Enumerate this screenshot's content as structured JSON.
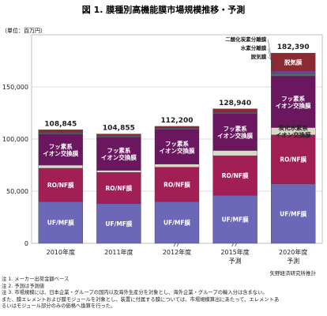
{
  "chart_data": {
    "type": "bar",
    "stacked": true,
    "title": "図 1.  膜種別高機能膜市場規模推移・予測",
    "ylabel": "（単位：百万円）",
    "ylim": [
      0,
      200000
    ],
    "yticks": [
      0,
      50000,
      100000,
      150000
    ],
    "ytick_labels": [
      "0",
      "50,000",
      "100,000",
      "150,000"
    ],
    "grid": true,
    "categories": [
      "2010年度",
      "2011年度",
      "2012年度",
      "2015年度",
      "2020年度"
    ],
    "category_sublabels": [
      "",
      "",
      "",
      "予測",
      "予測"
    ],
    "totals": [
      108845,
      104855,
      112200,
      128940,
      182390
    ],
    "total_labels": [
      "108,845",
      "104,855",
      "112,200",
      "128,940",
      "182,390"
    ],
    "series": [
      {
        "name": "UF/MF膜",
        "color": "#6b68b8",
        "values": [
          40000,
          38000,
          40000,
          46000,
          57000
        ]
      },
      {
        "name": "RO/NF膜",
        "color": "#a11f55",
        "values": [
          32000,
          30000,
          33000,
          38000,
          47000
        ]
      },
      {
        "name": "炭化水素系",
        "color": "#dcd8c8",
        "values": [
          3000,
          2000,
          3000,
          5000,
          7000
        ]
      },
      {
        "name": "フッ素系イオン交換膜",
        "color": "#6a1760",
        "values": [
          29845,
          31855,
          33200,
          35440,
          49390
        ]
      },
      {
        "name": "二酸化炭素分離膜",
        "color": "#3a7a5e",
        "values": [
          1000,
          1000,
          1000,
          1000,
          2500
        ]
      },
      {
        "name": "水素分離膜",
        "color": "#7a3e96",
        "values": [
          500,
          500,
          500,
          500,
          2500
        ]
      },
      {
        "name": "脱気膜",
        "color": "#8b2a32",
        "values": [
          2500,
          1500,
          1500,
          3000,
          17000
        ]
      }
    ],
    "segment_labels": [
      [
        "UF/MF膜",
        "UF/MF膜",
        "UF/MF膜",
        "UF/MF膜",
        "UF/MF膜"
      ],
      [
        "RO/NF膜",
        "RO/NF膜",
        "RO/NF膜",
        "RO/NF膜",
        "RO/NF膜"
      ],
      [
        "",
        "",
        "",
        "",
        "炭化水素系イオン交換膜"
      ],
      [
        "フッ素系イオン交換膜",
        "フッ素系イオン交換膜",
        "フッ素系イオン交換膜",
        "フッ素系イオン交換膜",
        "フッ素系イオン交換膜"
      ],
      [
        "",
        "",
        "",
        "",
        ""
      ],
      [
        "",
        "",
        "",
        "",
        ""
      ],
      [
        "",
        "",
        "",
        "",
        "脱気膜"
      ]
    ],
    "legend_callouts": [
      "二酸化炭素分離膜",
      "水素分離膜",
      "脱気膜"
    ]
  },
  "source": "矢野経済研究所推計",
  "notes": [
    "注 1. メーカー出荷金額ベース",
    "注 2. 予測は予測値",
    "注 3. 市場規模には、日本企業・グループの国内以及海外生産分を対象とし、海外企業・グループの輸入分は含まない。",
    "また、膜エレメントおよび膜モジュールを対象とし、装置に付属する膜については、市場規模算出にあたって、エレメントあ",
    "るいはモジュール部分のみの価格へ換算を行った。"
  ]
}
